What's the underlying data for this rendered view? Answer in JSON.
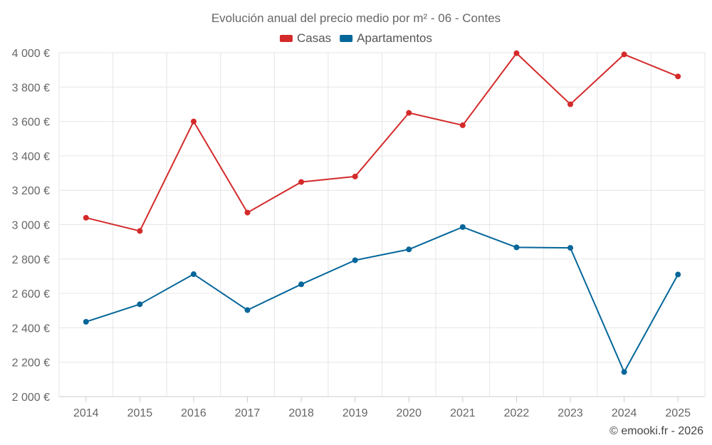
{
  "chart_data": {
    "type": "line",
    "title": "Evolución anual del precio medio por m² - 06 - Contes",
    "categories": [
      "2014",
      "2015",
      "2016",
      "2017",
      "2018",
      "2019",
      "2020",
      "2021",
      "2022",
      "2023",
      "2024",
      "2025"
    ],
    "series": [
      {
        "name": "Casas",
        "color": "#d42a2a",
        "values": [
          3040,
          2963,
          3600,
          3070,
          3248,
          3280,
          3650,
          3578,
          3997,
          3700,
          3990,
          3862
        ]
      },
      {
        "name": "Apartamentos",
        "color": "#05669a",
        "values": [
          2435,
          2537,
          2712,
          2503,
          2653,
          2793,
          2856,
          2986,
          2868,
          2865,
          2143,
          2710
        ]
      }
    ],
    "ylim": [
      2000,
      4000
    ],
    "yticks": [
      2000,
      2200,
      2400,
      2600,
      2800,
      3000,
      3200,
      3400,
      3600,
      3800,
      4000
    ],
    "ytick_labels": [
      "2 000 €",
      "2 200 €",
      "2 400 €",
      "2 600 €",
      "2 800 €",
      "3 000 €",
      "3 200 €",
      "3 400 €",
      "3 600 €",
      "3 800 €",
      "4 000 €"
    ],
    "xlabel": "",
    "ylabel": "",
    "grid": true,
    "legend_position": "top-center"
  },
  "credit": "© emooki.fr - 2026"
}
